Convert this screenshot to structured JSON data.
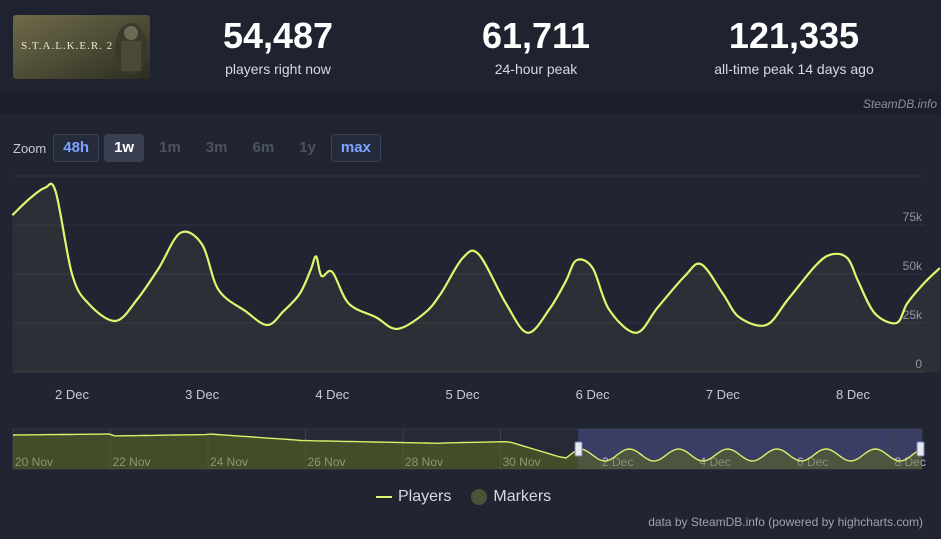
{
  "game": {
    "logo_text": "S.T.A.L.K.E.R. 2"
  },
  "stats": [
    {
      "value": "54,487",
      "label": "players right now"
    },
    {
      "value": "61,711",
      "label": "24-hour peak"
    },
    {
      "value": "121,335",
      "label": "all-time peak 14 days ago"
    }
  ],
  "credit_top": "SteamDB.info",
  "zoom": {
    "label": "Zoom",
    "buttons": [
      {
        "label": "48h",
        "state": "active"
      },
      {
        "label": "1w",
        "state": "current"
      },
      {
        "label": "1m",
        "state": "disabled"
      },
      {
        "label": "3m",
        "state": "disabled"
      },
      {
        "label": "6m",
        "state": "disabled"
      },
      {
        "label": "1y",
        "state": "disabled"
      },
      {
        "label": "max",
        "state": "active"
      }
    ]
  },
  "chart_data": {
    "type": "line",
    "title": "",
    "xlabel": "",
    "ylabel": "",
    "x_ticks": [
      "2 Dec",
      "3 Dec",
      "4 Dec",
      "5 Dec",
      "6 Dec",
      "7 Dec",
      "8 Dec"
    ],
    "y_ticks": [
      "0",
      "25k",
      "50k",
      "75k"
    ],
    "ylim": [
      0,
      100000
    ],
    "grid": true,
    "series": [
      {
        "name": "Players",
        "color": "#e1f66f",
        "x": [
          "2024-12-01 13:00",
          "2024-12-01 16:00",
          "2024-12-01 19:00",
          "2024-12-01 21:00",
          "2024-12-02 00:00",
          "2024-12-02 03:00",
          "2024-12-02 08:00",
          "2024-12-02 12:00",
          "2024-12-02 16:00",
          "2024-12-02 20:00",
          "2024-12-03 00:00",
          "2024-12-03 03:00",
          "2024-12-03 08:00",
          "2024-12-03 12:00",
          "2024-12-03 15:00",
          "2024-12-03 18:00",
          "2024-12-03 20:00",
          "2024-12-03 21:00",
          "2024-12-03 22:00",
          "2024-12-04 00:00",
          "2024-12-04 03:00",
          "2024-12-04 08:00",
          "2024-12-04 12:00",
          "2024-12-04 17:00",
          "2024-12-04 20:00",
          "2024-12-05 00:00",
          "2024-12-05 03:00",
          "2024-12-05 08:00",
          "2024-12-05 12:00",
          "2024-12-05 16:00",
          "2024-12-05 19:00",
          "2024-12-05 21:00",
          "2024-12-06 00:00",
          "2024-12-06 03:00",
          "2024-12-06 08:00",
          "2024-12-06 12:00",
          "2024-12-06 17:00",
          "2024-12-06 20:00",
          "2024-12-07 00:00",
          "2024-12-07 03:00",
          "2024-12-07 08:00",
          "2024-12-07 12:00",
          "2024-12-07 17:00",
          "2024-12-07 20:00",
          "2024-12-07 23:00",
          "2024-12-08 01:00",
          "2024-12-08 04:00",
          "2024-12-08 08:00",
          "2024-12-08 10:00",
          "2024-12-08 13:00",
          "2024-12-08 16:00"
        ],
        "values": [
          80000,
          88000,
          94000,
          92000,
          50000,
          35000,
          26000,
          37000,
          53000,
          71000,
          65000,
          42000,
          31000,
          24000,
          31000,
          40000,
          52000,
          59000,
          49000,
          51000,
          35000,
          28000,
          22000,
          30000,
          40000,
          58000,
          60000,
          35000,
          20000,
          32000,
          46000,
          57000,
          53000,
          32000,
          20000,
          33000,
          49000,
          55000,
          40000,
          28000,
          24000,
          37000,
          54000,
          60000,
          58000,
          46000,
          30000,
          25000,
          35000,
          45000,
          53000
        ]
      }
    ],
    "navigator": {
      "x_ticks": [
        "20 Nov",
        "22 Nov",
        "24 Nov",
        "26 Nov",
        "28 Nov",
        "30 Nov",
        "2 Dec",
        "4 Dec",
        "6 Dec",
        "8 Dec"
      ],
      "selected_range": [
        "2024-12-01",
        "2024-12-08"
      ]
    },
    "legend": {
      "position": "bottom-center",
      "items": [
        "Players",
        "Markers"
      ]
    }
  },
  "credit_bottom": "data by SteamDB.info (powered by highcharts.com)"
}
